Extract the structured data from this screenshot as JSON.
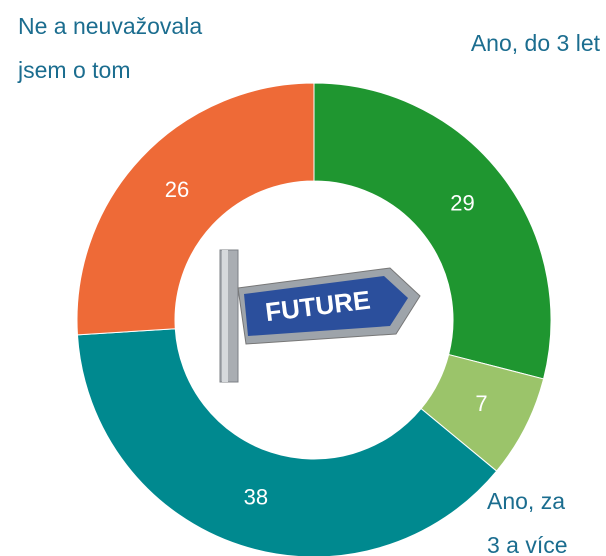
{
  "chart_data": {
    "type": "donut",
    "categories": [
      "Ano, do 3 let",
      "Ano, za\n3 a více",
      null,
      "Ne a neuvažovala\njsem o tom"
    ],
    "values": [
      29,
      7,
      38,
      26
    ],
    "colors": [
      "#1f9630",
      "#9bc46a",
      "#00898f",
      "#ee6a37"
    ]
  }
}
